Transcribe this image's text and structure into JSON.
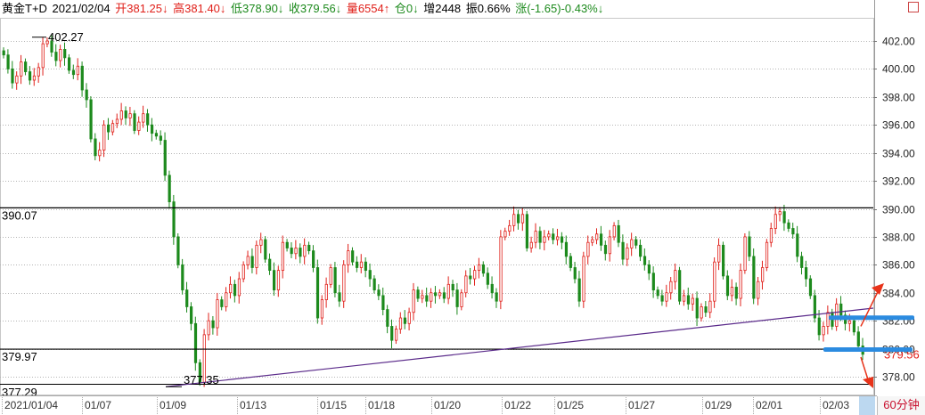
{
  "header": {
    "instrument": "黄金T+D",
    "date": "2021/02/04",
    "open": "开381.25↓",
    "high": "高381.40↓",
    "low": "低378.90↓",
    "close": "收379.56↓",
    "volume": "量6554↑",
    "position": "仓0↓",
    "increase": "增2448",
    "amplitude": "振0.66%",
    "change": "涨(-1.65)-0.43%↓"
  },
  "period_label": "60分钟",
  "chart_data": {
    "type": "candlestick",
    "y_axis": {
      "min": 377.0,
      "max": 403.0,
      "ticks": [
        "402.00",
        "400.00",
        "398.00",
        "396.00",
        "394.00",
        "392.00",
        "390.00",
        "388.00",
        "386.00",
        "384.00",
        "382.00",
        "380.00",
        "378.00"
      ],
      "side": "right"
    },
    "x_axis": {
      "labels": [
        "2021/01/04",
        "01/07",
        "01/09",
        "01/13",
        "01/15",
        "01/18",
        "01/20",
        "01/22",
        "01/25",
        "01/27",
        "01/29",
        "02/01",
        "02/03"
      ]
    },
    "annotations": {
      "high_marker": "402.27",
      "low_marker": "377.35",
      "hline_top": "390.07",
      "hline_bottom": "379.97",
      "bottom_left": "377.29",
      "last_price": "379.56"
    },
    "trendline": {
      "from": {
        "x_label": "01/09",
        "y": 377.35
      },
      "to": {
        "x_label": "02/03",
        "y": 382.9
      }
    },
    "colors": {
      "up": "#e0201a",
      "down": "#1d8a1d",
      "trend": "#5a2a8a",
      "accent": "#2b8be0",
      "arrow": "#e8331a"
    }
  }
}
